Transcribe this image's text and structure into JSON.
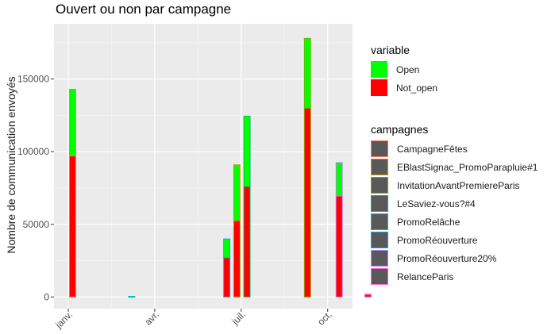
{
  "chart_data": {
    "type": "bar",
    "stacked": true,
    "title": "Ouvert ou non par campagne",
    "xlabel": "",
    "ylabel": "Nombre de communication envoyés",
    "ylim": [
      -8000,
      188000
    ],
    "y_ticks": [
      0,
      50000,
      100000,
      150000
    ],
    "y_tick_labels": [
      "0",
      "50000",
      "100000",
      "150000"
    ],
    "x_ticks": [
      "janv.",
      "avr.",
      "juil.",
      "oct."
    ],
    "grid": true,
    "legend_position": "right",
    "fill_legend": {
      "title": "variable",
      "entries": [
        {
          "name": "Open",
          "color": "#00FF00"
        },
        {
          "name": "Not_open",
          "color": "#FF0000"
        }
      ]
    },
    "colour_legend": {
      "title": "campagnes",
      "entries": [
        {
          "name": "CampagneFêtes",
          "color": "#F8766D"
        },
        {
          "name": "EBlastSignac_PromoParapluie#1",
          "color": "#CD9600"
        },
        {
          "name": "InvitationAvantPremiereParis",
          "color": "#7CAE00"
        },
        {
          "name": "LeSaviez-vous?#4",
          "color": "#00BE67"
        },
        {
          "name": "PromoRelâche",
          "color": "#00BFC4"
        },
        {
          "name": "PromoRéouverture",
          "color": "#00A9FF"
        },
        {
          "name": "PromoRéouverture20%",
          "color": "#C77CFF"
        },
        {
          "name": "RelanceParis",
          "color": "#FF61CC"
        }
      ]
    },
    "series": [
      {
        "name": "Not_open",
        "color": "#FF0000",
        "values": [
          97000,
          200,
          27000,
          52500,
          76000,
          130000,
          69500,
          1500
        ]
      },
      {
        "name": "Open",
        "color": "#00FF00",
        "values": [
          46000,
          300,
          13000,
          38500,
          48500,
          48000,
          23000,
          600
        ]
      }
    ],
    "bars": [
      {
        "x_month": 0.15,
        "border": "#F8766D"
      },
      {
        "x_month": 2.2,
        "border": "#00BFC4"
      },
      {
        "x_month": 5.5,
        "border": "#00A9FF"
      },
      {
        "x_month": 5.85,
        "border": "#CD9600"
      },
      {
        "x_month": 6.2,
        "border": "#00BE67"
      },
      {
        "x_month": 8.3,
        "border": "#7CAE00"
      },
      {
        "x_month": 9.4,
        "border": "#C77CFF"
      },
      {
        "x_month": 10.4,
        "border": "#FF61CC"
      }
    ]
  }
}
